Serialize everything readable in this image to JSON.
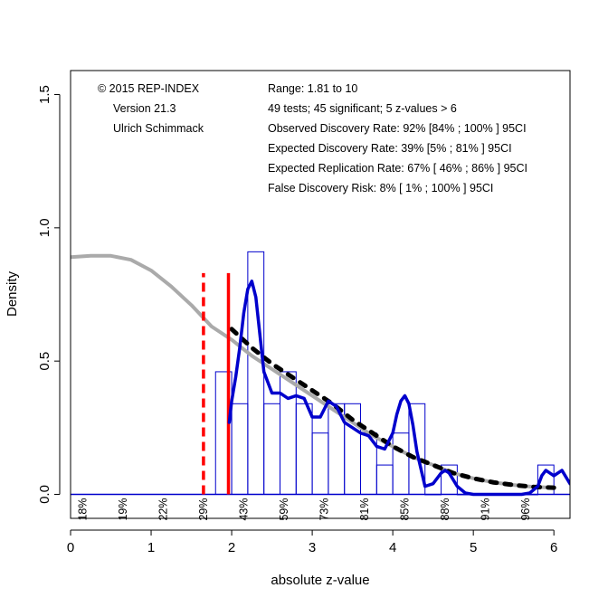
{
  "chart_data": {
    "type": "histogram",
    "xlabel": "absolute z-value",
    "ylabel": "Density",
    "xlim": [
      0,
      6.2
    ],
    "ylim": [
      -0.09,
      1.59
    ],
    "x_ticks": [
      0,
      1,
      2,
      3,
      4,
      5,
      6
    ],
    "x_tick_labels": [
      "0",
      "1",
      "2",
      "3",
      "4",
      "5",
      "6"
    ],
    "y_ticks": [
      0.0,
      0.5,
      1.0,
      1.5
    ],
    "y_tick_labels": [
      "0.0",
      "0.5",
      "1.0",
      "1.5"
    ],
    "info_left": [
      "© 2015 REP-INDEX",
      "Version 21.3",
      "Ulrich Schimmack"
    ],
    "info_right": [
      "Range: 1.81 to 10",
      "49 tests; 45 significant; 5 z-values > 6",
      "Observed Discovery Rate: 92% [84% ; 100% ] 95CI",
      "Expected Discovery Rate: 39% [5% ; 81% ] 95CI",
      "Expected Replication Rate: 67% [ 46% ; 86% ] 95CI",
      "False Discovery Risk: 8% [ 1% ; 100% ] 95CI"
    ],
    "histogram": {
      "color": "#0000cc",
      "bins": [
        {
          "x0": 1.8,
          "x1": 2.0,
          "density": 0.46
        },
        {
          "x0": 2.0,
          "x1": 2.2,
          "density": 0.34
        },
        {
          "x0": 2.2,
          "x1": 2.4,
          "density": 0.91
        },
        {
          "x0": 2.4,
          "x1": 2.6,
          "density": 0.34
        },
        {
          "x0": 2.6,
          "x1": 2.8,
          "density": 0.46
        },
        {
          "x0": 2.8,
          "x1": 3.0,
          "density": 0.34
        },
        {
          "x0": 3.0,
          "x1": 3.2,
          "density": 0.23
        },
        {
          "x0": 3.2,
          "x1": 3.4,
          "density": 0.34
        },
        {
          "x0": 3.4,
          "x1": 3.6,
          "density": 0.34
        },
        {
          "x0": 3.6,
          "x1": 3.8,
          "density": 0.23
        },
        {
          "x0": 3.8,
          "x1": 4.0,
          "density": 0.11
        },
        {
          "x0": 4.0,
          "x1": 4.2,
          "density": 0.23
        },
        {
          "x0": 4.2,
          "x1": 4.4,
          "density": 0.34
        },
        {
          "x0": 4.4,
          "x1": 4.6,
          "density": 0.0
        },
        {
          "x0": 4.6,
          "x1": 4.8,
          "density": 0.11
        },
        {
          "x0": 4.8,
          "x1": 5.0,
          "density": 0.0
        },
        {
          "x0": 5.0,
          "x1": 5.2,
          "density": 0.0
        },
        {
          "x0": 5.2,
          "x1": 5.4,
          "density": 0.0
        },
        {
          "x0": 5.4,
          "x1": 5.6,
          "density": 0.0
        },
        {
          "x0": 5.6,
          "x1": 5.8,
          "density": 0.0
        },
        {
          "x0": 5.8,
          "x1": 6.0,
          "density": 0.11
        }
      ]
    },
    "model_curve_gray": {
      "color": "#aaaaaa",
      "x": [
        0,
        0.25,
        0.5,
        0.75,
        1.0,
        1.25,
        1.5,
        1.75,
        2.0,
        2.25,
        2.5,
        2.75,
        3.0,
        3.25,
        3.5,
        3.75,
        4.0,
        4.25,
        4.5,
        4.75,
        5.0,
        5.25,
        5.5,
        5.75,
        6.0
      ],
      "y": [
        0.89,
        0.895,
        0.895,
        0.88,
        0.84,
        0.78,
        0.71,
        0.63,
        0.58,
        0.52,
        0.47,
        0.42,
        0.37,
        0.32,
        0.27,
        0.22,
        0.18,
        0.14,
        0.11,
        0.08,
        0.06,
        0.045,
        0.035,
        0.028,
        0.025
      ]
    },
    "model_curve_black_dashed": {
      "color": "#000000",
      "x": [
        2.0,
        2.25,
        2.5,
        2.75,
        3.0,
        3.25,
        3.5,
        3.75,
        4.0,
        4.25,
        4.5,
        4.75,
        5.0,
        5.25,
        5.5,
        5.75,
        6.0
      ],
      "y": [
        0.62,
        0.55,
        0.49,
        0.44,
        0.39,
        0.34,
        0.28,
        0.23,
        0.18,
        0.14,
        0.11,
        0.08,
        0.06,
        0.045,
        0.035,
        0.028,
        0.025
      ]
    },
    "kernel_density_blue": {
      "color": "#0000cc",
      "x": [
        1.97,
        2.0,
        2.05,
        2.1,
        2.15,
        2.2,
        2.25,
        2.3,
        2.35,
        2.4,
        2.5,
        2.6,
        2.7,
        2.8,
        2.9,
        3.0,
        3.1,
        3.2,
        3.3,
        3.4,
        3.5,
        3.6,
        3.7,
        3.8,
        3.9,
        4.0,
        4.05,
        4.1,
        4.15,
        4.2,
        4.25,
        4.3,
        4.4,
        4.5,
        4.6,
        4.65,
        4.7,
        4.8,
        4.9,
        5.0,
        5.2,
        5.4,
        5.6,
        5.7,
        5.8,
        5.85,
        5.9,
        5.95,
        6.0,
        6.1,
        6.2
      ],
      "y": [
        0.27,
        0.35,
        0.44,
        0.55,
        0.68,
        0.77,
        0.8,
        0.74,
        0.6,
        0.46,
        0.38,
        0.38,
        0.36,
        0.37,
        0.36,
        0.29,
        0.29,
        0.35,
        0.33,
        0.27,
        0.25,
        0.23,
        0.22,
        0.18,
        0.17,
        0.23,
        0.3,
        0.35,
        0.37,
        0.34,
        0.26,
        0.16,
        0.03,
        0.04,
        0.08,
        0.09,
        0.08,
        0.03,
        0.005,
        0.0,
        0.0,
        0.0,
        0.0,
        0.005,
        0.03,
        0.07,
        0.09,
        0.08,
        0.07,
        0.09,
        0.04
      ]
    },
    "vline_dashed_red": {
      "color": "#ff0000",
      "x": 1.65,
      "y_top": 0.83
    },
    "vline_solid_red": {
      "color": "#ff0000",
      "x": 1.96,
      "y_top": 0.83
    },
    "bottom_percentages": {
      "labels": [
        "18%",
        "19%",
        "22%",
        "29%",
        "43%",
        "59%",
        "73%",
        "81%",
        "85%",
        "88%",
        "91%",
        "96%"
      ],
      "x": [
        0.15,
        0.65,
        1.15,
        1.65,
        2.15,
        2.65,
        3.15,
        3.65,
        4.15,
        4.65,
        5.15,
        5.65
      ]
    }
  }
}
